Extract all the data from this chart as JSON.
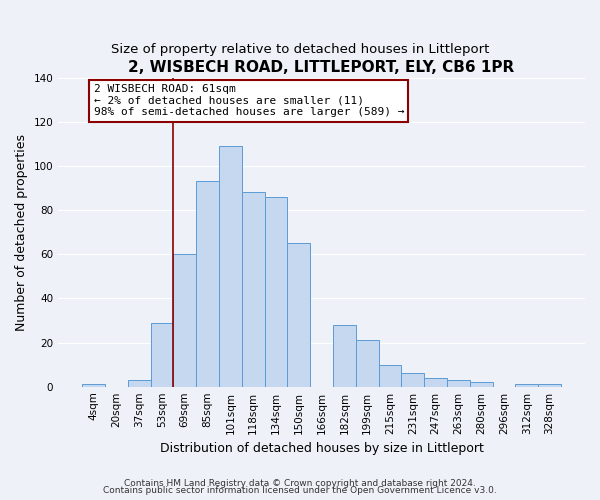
{
  "title": "2, WISBECH ROAD, LITTLEPORT, ELY, CB6 1PR",
  "subtitle": "Size of property relative to detached houses in Littleport",
  "xlabel": "Distribution of detached houses by size in Littleport",
  "ylabel": "Number of detached properties",
  "bar_labels": [
    "4sqm",
    "20sqm",
    "37sqm",
    "53sqm",
    "69sqm",
    "85sqm",
    "101sqm",
    "118sqm",
    "134sqm",
    "150sqm",
    "166sqm",
    "182sqm",
    "199sqm",
    "215sqm",
    "231sqm",
    "247sqm",
    "263sqm",
    "280sqm",
    "296sqm",
    "312sqm",
    "328sqm"
  ],
  "bar_values": [
    1,
    0,
    3,
    29,
    60,
    93,
    109,
    88,
    86,
    65,
    0,
    28,
    21,
    10,
    6,
    4,
    3,
    2,
    0,
    1,
    1
  ],
  "bar_color": "#c5d8f0",
  "bar_edge_color": "#5b9bd5",
  "ylim": [
    0,
    140
  ],
  "yticks": [
    0,
    20,
    40,
    60,
    80,
    100,
    120,
    140
  ],
  "vline_x_index": 3.5,
  "vline_color": "#8b0000",
  "annotation_line1": "2 WISBECH ROAD: 61sqm",
  "annotation_line2": "← 2% of detached houses are smaller (11)",
  "annotation_line3": "98% of semi-detached houses are larger (589) →",
  "footer1": "Contains HM Land Registry data © Crown copyright and database right 2024.",
  "footer2": "Contains public sector information licensed under the Open Government Licence v3.0.",
  "bg_color": "#eef2f8",
  "grid_color": "#ffffff",
  "title_fontsize": 11,
  "subtitle_fontsize": 9.5,
  "axis_label_fontsize": 9,
  "tick_fontsize": 7.5,
  "footer_fontsize": 6.5
}
